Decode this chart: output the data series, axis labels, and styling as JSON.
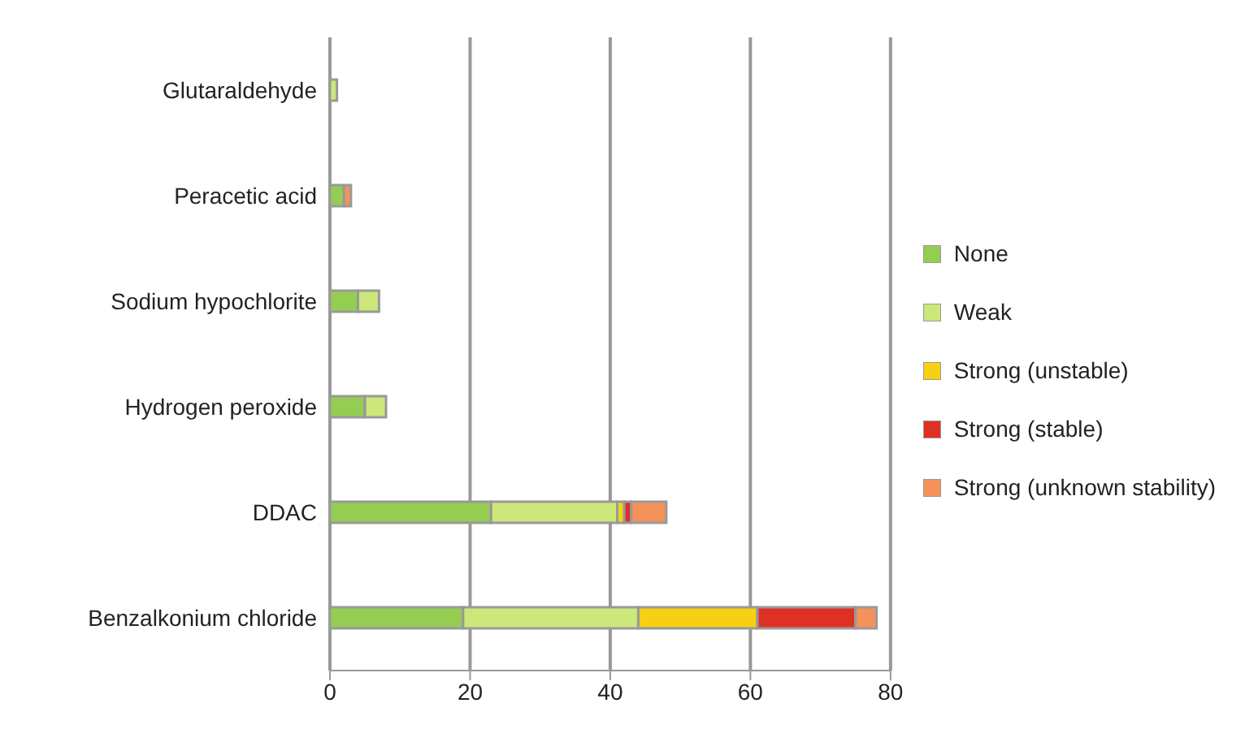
{
  "chart_data": {
    "type": "bar",
    "orientation": "horizontal",
    "stacked": true,
    "categories": [
      "Glutaraldehyde",
      "Peracetic acid",
      "Sodium hypochlorite",
      "Hydrogen peroxide",
      "DDAC",
      "Benzalkonium chloride"
    ],
    "series": [
      {
        "name": "None",
        "color": "#95cd53",
        "values": [
          0,
          2,
          4,
          5,
          23,
          19
        ]
      },
      {
        "name": "Weak",
        "color": "#cde87a",
        "values": [
          1,
          0,
          3,
          3,
          18,
          25
        ]
      },
      {
        "name": "Strong (unstable)",
        "color": "#f6d113",
        "values": [
          0,
          0,
          0,
          0,
          1,
          17
        ]
      },
      {
        "name": "Strong (stable)",
        "color": "#de3124",
        "values": [
          0,
          0,
          0,
          0,
          1,
          14
        ]
      },
      {
        "name": "Strong (unknown stability)",
        "color": "#f4925a",
        "values": [
          0,
          1,
          0,
          0,
          5,
          3
        ]
      }
    ],
    "xlim": [
      0,
      80
    ],
    "xticks": [
      0,
      20,
      40,
      60,
      80
    ],
    "grid": "x",
    "legend": "right"
  }
}
